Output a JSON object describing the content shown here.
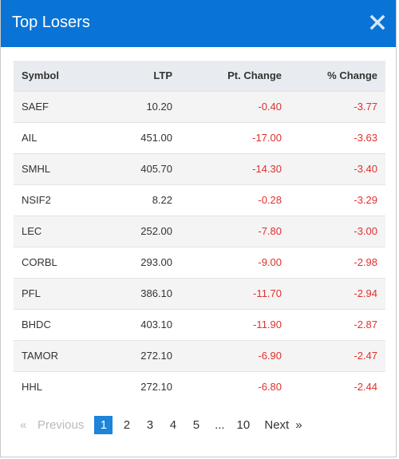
{
  "header": {
    "title": "Top Losers",
    "close_icon": "close-icon",
    "background": "#0a74d6"
  },
  "table": {
    "columns": [
      "Symbol",
      "LTP",
      "Pt. Change",
      "% Change"
    ],
    "rows": [
      [
        "SAEF",
        "10.20",
        "-0.40",
        "-3.77"
      ],
      [
        "AIL",
        "451.00",
        "-17.00",
        "-3.63"
      ],
      [
        "SMHL",
        "405.70",
        "-14.30",
        "-3.40"
      ],
      [
        "NSIF2",
        "8.22",
        "-0.28",
        "-3.29"
      ],
      [
        "LEC",
        "252.00",
        "-7.80",
        "-3.00"
      ],
      [
        "CORBL",
        "293.00",
        "-9.00",
        "-2.98"
      ],
      [
        "PFL",
        "386.10",
        "-11.70",
        "-2.94"
      ],
      [
        "BHDC",
        "403.10",
        "-11.90",
        "-2.87"
      ],
      [
        "TAMOR",
        "272.10",
        "-6.90",
        "-2.47"
      ],
      [
        "HHL",
        "272.10",
        "-6.80",
        "-2.44"
      ]
    ],
    "negative_color": "#e0302f"
  },
  "pagination": {
    "prev_arrow": "«",
    "prev_label": "Previous",
    "pages": [
      "1",
      "2",
      "3",
      "4",
      "5"
    ],
    "ellipsis": "...",
    "last_page": "10",
    "next_label": "Next",
    "next_arrow": "»",
    "active_page": "1",
    "active_color": "#1c84d9"
  }
}
